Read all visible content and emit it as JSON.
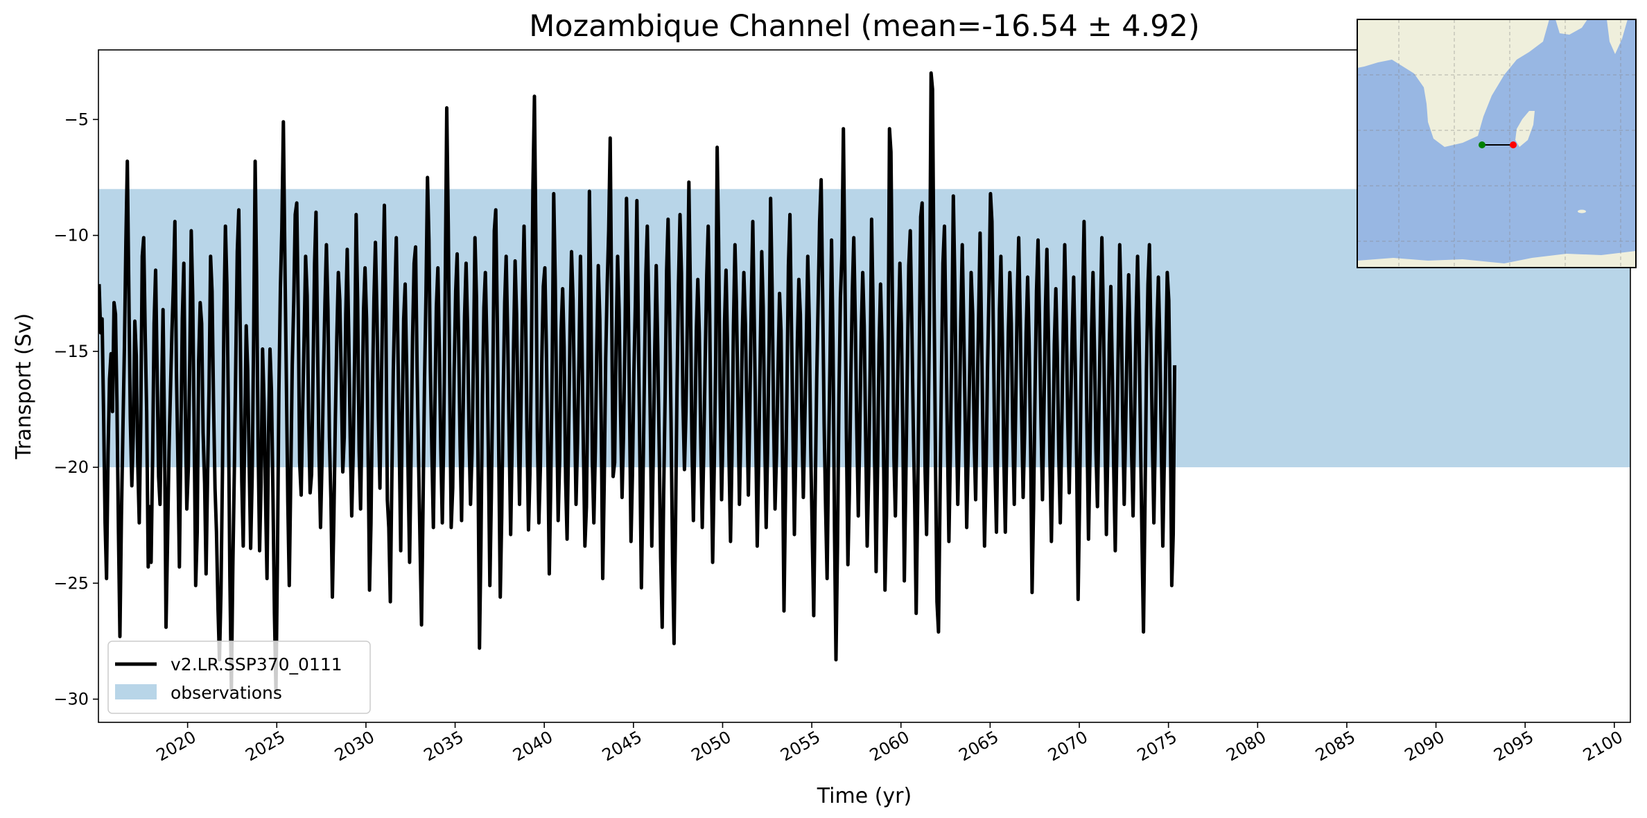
{
  "chart_data": {
    "type": "line",
    "title": "Mozambique Channel (mean=-16.54 ± 4.92)",
    "xlabel": "Time (yr)",
    "ylabel": "Transport (Sv)",
    "xlim": [
      2015.0,
      2100.9
    ],
    "ylim": [
      -31,
      -2
    ],
    "x_ticks": [
      2020,
      2025,
      2030,
      2035,
      2040,
      2045,
      2050,
      2055,
      2060,
      2065,
      2070,
      2075,
      2080,
      2085,
      2090,
      2095,
      2100
    ],
    "y_ticks": [
      -30,
      -25,
      -20,
      -15,
      -10,
      -5
    ],
    "observations_band": [
      -20,
      -8
    ],
    "colors": {
      "line": "#000000",
      "band": "#b8d5e8",
      "map_ocean": "#98b7e3",
      "map_land": "#efefdc",
      "start_point": "#008000",
      "end_point": "#ff0000"
    },
    "legend": {
      "location": "lower-left",
      "entries": [
        "v2.LR.SSP370_0111",
        "observations"
      ]
    },
    "inset_map": {
      "location": "upper-right",
      "section_start": "green-dot",
      "section_end": "red-dot"
    },
    "series": [
      {
        "name": "v2.LR.SSP370_0111",
        "x_start": 2015.04,
        "x_step": 0.0833,
        "values": [
          -12.1,
          -14.2,
          -13.6,
          -17.8,
          -22.4,
          -24.8,
          -19.4,
          -16.2,
          -15.1,
          -17.6,
          -12.9,
          -13.4,
          -17.2,
          -22.8,
          -27.3,
          -22.1,
          -18.4,
          -14.8,
          -10.3,
          -6.8,
          -12.5,
          -17.9,
          -20.8,
          -18.6,
          -13.7,
          -15.2,
          -19.8,
          -22.4,
          -18.1,
          -10.9,
          -10.1,
          -14.3,
          -17.6,
          -24.3,
          -21.7,
          -24.1,
          -19.5,
          -13.8,
          -11.5,
          -15.7,
          -20.4,
          -21.6,
          -17.3,
          -13.2,
          -18.4,
          -26.9,
          -23.4,
          -19.3,
          -16.7,
          -14.2,
          -12.1,
          -9.4,
          -15.8,
          -19.6,
          -24.3,
          -18.9,
          -13.6,
          -11.2,
          -17.4,
          -21.8,
          -20.1,
          -15.3,
          -9.8,
          -12.6,
          -18.7,
          -25.1,
          -22.8,
          -15.4,
          -12.9,
          -13.8,
          -18.5,
          -20.7,
          -24.6,
          -20.3,
          -16.6,
          -10.9,
          -12.4,
          -17.1,
          -20.9,
          -22.8,
          -26.1,
          -28.3,
          -25.4,
          -20.2,
          -13.4,
          -9.6,
          -12.1,
          -17.6,
          -24.7,
          -29.6,
          -24.3,
          -20.1,
          -15.3,
          -10.7,
          -8.9,
          -14.2,
          -20.6,
          -23.4,
          -18.2,
          -13.9,
          -15.8,
          -19.9,
          -23.5,
          -20.4,
          -14.4,
          -6.8,
          -11.8,
          -18.9,
          -23.6,
          -20.7,
          -14.9,
          -17.2,
          -21.4,
          -24.8,
          -18.6,
          -14.9,
          -16.7,
          -21.2,
          -26.3,
          -29.7,
          -24.1,
          -16.8,
          -12.3,
          -9.7,
          -5.1,
          -10.8,
          -16.2,
          -21.5,
          -25.1,
          -20.4,
          -15.6,
          -12.8,
          -9.1,
          -8.6,
          -13.1,
          -19.8,
          -21.2,
          -17.6,
          -14.3,
          -10.9,
          -12.6,
          -17.9,
          -21.1,
          -20.3,
          -15.9,
          -11.2,
          -9.0,
          -14.7,
          -19.4,
          -22.6,
          -19.8,
          -16.1,
          -12.9,
          -10.4,
          -13.2,
          -18.7,
          -21.4,
          -25.6,
          -22.3,
          -17.9,
          -14.4,
          -11.6,
          -12.8,
          -16.3,
          -20.2,
          -18.7,
          -13.4,
          -10.6,
          -14.3,
          -18.7,
          -22.1,
          -19.4,
          -15.2,
          -9.1,
          -12.8,
          -19.3,
          -21.8,
          -17.6,
          -13.2,
          -11.4,
          -13.6,
          -18.9,
          -25.3,
          -22.4,
          -16.6,
          -12.7,
          -10.3,
          -13.4,
          -17.8,
          -20.9,
          -16.4,
          -12.1,
          -8.7,
          -13.2,
          -21.4,
          -22.6,
          -25.8,
          -20.7,
          -15.8,
          -12.9,
          -10.1,
          -14.4,
          -18.9,
          -23.6,
          -17.9,
          -13.6,
          -12.1,
          -15.8,
          -20.4,
          -24.1,
          -19.3,
          -14.4,
          -11.2,
          -10.5,
          -15.7,
          -19.6,
          -23.2,
          -26.8,
          -21.9,
          -16.3,
          -12.6,
          -7.5,
          -10.2,
          -15.8,
          -19.4,
          -22.6,
          -17.3,
          -13.1,
          -11.4,
          -14.9,
          -19.2,
          -22.4,
          -18.6,
          -11.8,
          -4.5,
          -9.6,
          -16.4,
          -22.6,
          -20.9,
          -15.8,
          -12.4,
          -10.8,
          -14.6,
          -19.1,
          -22.3,
          -17.8,
          -13.5,
          -11.2,
          -13.9,
          -18.7,
          -21.6,
          -19.4,
          -15.1,
          -10.1,
          -12.7,
          -19.4,
          -27.8,
          -23.4,
          -16.9,
          -13.1,
          -11.6,
          -14.7,
          -19.3,
          -25.1,
          -21.3,
          -16.2,
          -9.8,
          -8.9,
          -13.6,
          -19.4,
          -25.6,
          -22.1,
          -16.8,
          -12.9,
          -10.9,
          -14.3,
          -18.7,
          -22.9,
          -19.1,
          -14.6,
          -11.1,
          -13.4,
          -17.9,
          -21.6,
          -17.2,
          -12.8,
          -9.6,
          -13.1,
          -18.4,
          -22.7,
          -20.3,
          -14.9,
          -7.9,
          -4.0,
          -10.3,
          -18.6,
          -22.4,
          -20.1,
          -15.3,
          -12.2,
          -11.4,
          -14.7,
          -19.2,
          -24.6,
          -20.8,
          -15.4,
          -8.2,
          -11.9,
          -17.6,
          -22.3,
          -19.6,
          -14.1,
          -12.3,
          -14.8,
          -20.6,
          -23.1,
          -18.7,
          -13.9,
          -10.7,
          -12.8,
          -17.4,
          -21.6,
          -18.9,
          -15.2,
          -10.9,
          -14.6,
          -19.3,
          -23.4,
          -21.7,
          -16.3,
          -8.1,
          -12.9,
          -19.7,
          -22.4,
          -19.3,
          -14.7,
          -11.3,
          -13.6,
          -18.2,
          -24.8,
          -20.6,
          -15.3,
          -12.1,
          -9.8,
          -5.8,
          -13.1,
          -20.4,
          -19.8,
          -14.7,
          -10.9,
          -13.2,
          -17.7,
          -21.3,
          -18.6,
          -14.2,
          -8.4,
          -11.9,
          -17.4,
          -23.2,
          -20.3,
          -15.9,
          -12.8,
          -8.5,
          -14.3,
          -19.6,
          -25.2,
          -21.1,
          -16.4,
          -11.7,
          -9.6,
          -13.2,
          -17.9,
          -23.4,
          -19.5,
          -14.8,
          -11.3,
          -14.7,
          -19.2,
          -23.9,
          -26.9,
          -21.2,
          -16.8,
          -11.5,
          -9.3,
          -13.4,
          -18.1,
          -24.1,
          -27.6,
          -22.3,
          -16.5,
          -12.1,
          -9.1,
          -11.6,
          -17.3,
          -20.1,
          -17.6,
          -13.4,
          -7.7,
          -12.5,
          -18.8,
          -22.3,
          -18.4,
          -14.1,
          -11.9,
          -14.2,
          -18.9,
          -22.6,
          -19.2,
          -15.3,
          -11.7,
          -9.6,
          -13.4,
          -19.7,
          -24.1,
          -20.2,
          -15.6,
          -6.2,
          -10.3,
          -16.7,
          -21.4,
          -18.3,
          -13.7,
          -11.5,
          -14.8,
          -19.6,
          -23.2,
          -19.4,
          -13.9,
          -10.4,
          -12.9,
          -17.2,
          -21.6,
          -18.3,
          -14.1,
          -11.6,
          -13.8,
          -17.4,
          -21.2,
          -17.6,
          -12.8,
          -9.4,
          -13.6,
          -18.7,
          -23.4,
          -19.6,
          -15.2,
          -10.7,
          -13.1,
          -18.4,
          -22.6,
          -19.1,
          -14.4,
          -8.4,
          -12.3,
          -17.9,
          -21.8,
          -19.3,
          -15.8,
          -12.5,
          -14.1,
          -19.6,
          -26.2,
          -21.4,
          -16.6,
          -11.3,
          -9.1,
          -13.8,
          -18.4,
          -22.9,
          -19.2,
          -14.6,
          -11.9,
          -13.4,
          -17.8,
          -21.3,
          -18.1,
          -14.7,
          -10.9,
          -13.6,
          -19.2,
          -22.8,
          -26.4,
          -21.3,
          -16.2,
          -12.8,
          -9.4,
          -7.6,
          -12.4,
          -18.1,
          -21.7,
          -24.8,
          -19.5,
          -15.4,
          -10.2,
          -14.6,
          -22.8,
          -28.3,
          -23.4,
          -16.9,
          -12.7,
          -10.8,
          -5.4,
          -11.6,
          -18.4,
          -24.2,
          -21.1,
          -16.2,
          -12.4,
          -10.1,
          -13.7,
          -18.3,
          -22.1,
          -18.6,
          -14.2,
          -11.6,
          -13.9,
          -18.8,
          -23.4,
          -20.3,
          -15.7,
          -9.3,
          -13.2,
          -19.6,
          -24.5,
          -20.1,
          -14.7,
          -12.1,
          -14.6,
          -19.3,
          -25.3,
          -22.1,
          -16.3,
          -5.4,
          -6.4,
          -12.7,
          -19.6,
          -22.1,
          -18.4,
          -14.3,
          -11.2,
          -13.8,
          -18.6,
          -24.9,
          -20.7,
          -15.8,
          -11.3,
          -9.8,
          -13.6,
          -18.2,
          -21.6,
          -26.3,
          -21.4,
          -15.4,
          -9.2,
          -8.6,
          -14.1,
          -20.2,
          -22.9,
          -18.7,
          -13.2,
          -3.0,
          -3.7,
          -12.5,
          -19.8,
          -25.8,
          -27.1,
          -21.6,
          -15.9,
          -11.2,
          -9.6,
          -14.1,
          -18.7,
          -23.2,
          -19.5,
          -14.2,
          -8.3,
          -12.1,
          -17.8,
          -21.6,
          -18.4,
          -13.7,
          -10.4,
          -13.9,
          -18.2,
          -22.6,
          -19.3,
          -15.8,
          -11.6,
          -13.4,
          -18.8,
          -21.4,
          -17.2,
          -13.6,
          -9.9,
          -14.2,
          -19.1,
          -23.4,
          -20.2,
          -15.8,
          -12.3,
          -8.2,
          -9.4,
          -14.6,
          -19.8,
          -22.8,
          -18.3,
          -13.2,
          -10.9,
          -14.4,
          -19.6,
          -22.8,
          -18.7,
          -14.2,
          -11.6,
          -13.8,
          -18.4,
          -21.6,
          -17.3,
          -12.7,
          -10.1,
          -13.6,
          -17.8,
          -21.3,
          -18.4,
          -14.2,
          -11.8,
          -14.6,
          -19.2,
          -25.4,
          -21.8,
          -16.7,
          -12.4,
          -10.2,
          -13.7,
          -18.1,
          -21.4,
          -17.6,
          -13.1,
          -10.6,
          -14.3,
          -19.6,
          -23.2,
          -19.4,
          -14.7,
          -12.3,
          -15.1,
          -19.6,
          -22.4,
          -18.3,
          -13.9,
          -10.4,
          -13.6,
          -17.9,
          -21.1,
          -17.6,
          -14.2,
          -11.8,
          -15.4,
          -19.7,
          -25.7,
          -21.3,
          -16.1,
          -12.7,
          -9.4,
          -13.8,
          -18.6,
          -23.1,
          -19.4,
          -14.3,
          -11.6,
          -14.9,
          -19.3,
          -21.7,
          -17.6,
          -13.4,
          -10.1,
          -13.6,
          -18.2,
          -22.9,
          -19.1,
          -14.7,
          -12.2,
          -15.8,
          -20.3,
          -23.6,
          -19.2,
          -14.8,
          -10.4,
          -13.1,
          -17.9,
          -21.6,
          -18.2,
          -14.3,
          -11.7,
          -14.8,
          -19.4,
          -22.1,
          -17.9,
          -13.6,
          -10.9,
          -14.2,
          -18.7,
          -23.2,
          -27.1,
          -21.6,
          -15.8,
          -12.1,
          -10.4,
          -14.3,
          -18.9,
          -22.4,
          -18.3,
          -14.1,
          -11.8,
          -14.6,
          -19.2,
          -23.4,
          -19.8,
          -15.2,
          -11.6,
          -12.8,
          -17.6,
          -25.1,
          -22.9,
          -15.6
        ]
      }
    ]
  }
}
